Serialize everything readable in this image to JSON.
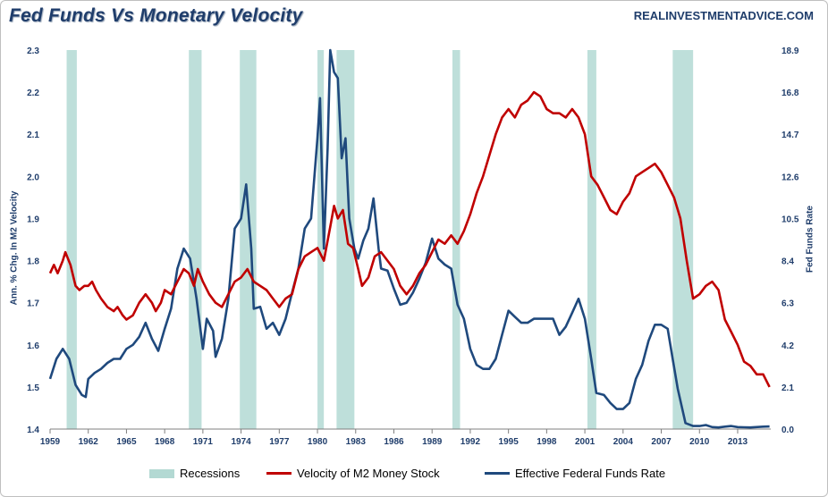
{
  "title": "Fed Funds Vs Monetary Velocity",
  "brand": "REALINVESTMENTADVICE.COM",
  "colors": {
    "velocity": "#c00000",
    "fedfunds": "#1f497d",
    "recession": "#b3d9d3",
    "axis_text": "#1f3d6b"
  },
  "legend": {
    "recessions": "Recessions",
    "velocity": "Velocity of M2 Money Stock",
    "fedfunds": "Effective Federal Funds Rate"
  },
  "chart_data": {
    "type": "line",
    "title": "Fed Funds Vs Monetary Velocity",
    "ylabel_left": "Ann. % Chg. In M2 Velocity",
    "ylabel_right": "Fed Funds Rate",
    "ylim_left": [
      1.4,
      2.3
    ],
    "ylim_right": [
      0.0,
      18.9
    ],
    "xlim": [
      1959,
      2015.6
    ],
    "x_ticks": [
      1959,
      1962,
      1965,
      1968,
      1971,
      1974,
      1977,
      1980,
      1983,
      1986,
      1989,
      1992,
      1995,
      1998,
      2001,
      2004,
      2007,
      2010,
      2013
    ],
    "y_ticks_left": [
      1.4,
      1.5,
      1.6,
      1.7,
      1.8,
      1.9,
      2.0,
      2.1,
      2.2,
      2.3
    ],
    "y_ticks_right": [
      "0.0",
      "2.1",
      "4.2",
      "6.3",
      "8.4",
      "10.5",
      "12.6",
      "14.7",
      "16.8",
      "18.9"
    ],
    "recessions": [
      [
        1960.3,
        1961.1
      ],
      [
        1969.9,
        1970.9
      ],
      [
        1973.9,
        1975.2
      ],
      [
        1980.0,
        1980.5
      ],
      [
        1981.5,
        1982.9
      ],
      [
        1990.6,
        1991.2
      ],
      [
        2001.2,
        2001.9
      ],
      [
        2007.9,
        2009.5
      ]
    ],
    "series": [
      {
        "name": "Velocity of M2 Money Stock",
        "axis": "left",
        "points": [
          [
            1959.0,
            1.77
          ],
          [
            1959.3,
            1.79
          ],
          [
            1959.6,
            1.77
          ],
          [
            1960.0,
            1.8
          ],
          [
            1960.2,
            1.82
          ],
          [
            1960.6,
            1.79
          ],
          [
            1961.0,
            1.74
          ],
          [
            1961.3,
            1.73
          ],
          [
            1961.7,
            1.74
          ],
          [
            1962.0,
            1.74
          ],
          [
            1962.3,
            1.75
          ],
          [
            1962.6,
            1.73
          ],
          [
            1963.0,
            1.71
          ],
          [
            1963.5,
            1.69
          ],
          [
            1964.0,
            1.68
          ],
          [
            1964.3,
            1.69
          ],
          [
            1964.7,
            1.67
          ],
          [
            1965.0,
            1.66
          ],
          [
            1965.5,
            1.67
          ],
          [
            1966.0,
            1.7
          ],
          [
            1966.5,
            1.72
          ],
          [
            1967.0,
            1.7
          ],
          [
            1967.3,
            1.68
          ],
          [
            1967.7,
            1.7
          ],
          [
            1968.0,
            1.73
          ],
          [
            1968.5,
            1.72
          ],
          [
            1969.0,
            1.75
          ],
          [
            1969.5,
            1.78
          ],
          [
            1969.9,
            1.77
          ],
          [
            1970.3,
            1.74
          ],
          [
            1970.6,
            1.78
          ],
          [
            1971.0,
            1.75
          ],
          [
            1971.5,
            1.72
          ],
          [
            1972.0,
            1.7
          ],
          [
            1972.5,
            1.69
          ],
          [
            1973.0,
            1.72
          ],
          [
            1973.5,
            1.75
          ],
          [
            1974.0,
            1.76
          ],
          [
            1974.5,
            1.78
          ],
          [
            1975.0,
            1.75
          ],
          [
            1975.5,
            1.74
          ],
          [
            1976.0,
            1.73
          ],
          [
            1976.5,
            1.71
          ],
          [
            1977.0,
            1.69
          ],
          [
            1977.5,
            1.71
          ],
          [
            1978.0,
            1.72
          ],
          [
            1978.5,
            1.78
          ],
          [
            1979.0,
            1.81
          ],
          [
            1979.5,
            1.82
          ],
          [
            1980.0,
            1.83
          ],
          [
            1980.5,
            1.8
          ],
          [
            1981.0,
            1.88
          ],
          [
            1981.3,
            1.93
          ],
          [
            1981.6,
            1.9
          ],
          [
            1982.0,
            1.92
          ],
          [
            1982.4,
            1.84
          ],
          [
            1982.8,
            1.83
          ],
          [
            1983.2,
            1.78
          ],
          [
            1983.5,
            1.74
          ],
          [
            1984.0,
            1.76
          ],
          [
            1984.5,
            1.81
          ],
          [
            1985.0,
            1.82
          ],
          [
            1985.5,
            1.8
          ],
          [
            1986.0,
            1.78
          ],
          [
            1986.5,
            1.74
          ],
          [
            1987.0,
            1.72
          ],
          [
            1987.5,
            1.74
          ],
          [
            1988.0,
            1.77
          ],
          [
            1988.5,
            1.79
          ],
          [
            1989.0,
            1.82
          ],
          [
            1989.5,
            1.85
          ],
          [
            1990.0,
            1.84
          ],
          [
            1990.5,
            1.86
          ],
          [
            1991.0,
            1.84
          ],
          [
            1991.5,
            1.87
          ],
          [
            1992.0,
            1.91
          ],
          [
            1992.5,
            1.96
          ],
          [
            1993.0,
            2.0
          ],
          [
            1993.5,
            2.05
          ],
          [
            1994.0,
            2.1
          ],
          [
            1994.5,
            2.14
          ],
          [
            1995.0,
            2.16
          ],
          [
            1995.5,
            2.14
          ],
          [
            1996.0,
            2.17
          ],
          [
            1996.5,
            2.18
          ],
          [
            1997.0,
            2.2
          ],
          [
            1997.5,
            2.19
          ],
          [
            1998.0,
            2.16
          ],
          [
            1998.5,
            2.15
          ],
          [
            1999.0,
            2.15
          ],
          [
            1999.5,
            2.14
          ],
          [
            2000.0,
            2.16
          ],
          [
            2000.5,
            2.14
          ],
          [
            2001.0,
            2.1
          ],
          [
            2001.5,
            2.0
          ],
          [
            2002.0,
            1.98
          ],
          [
            2002.5,
            1.95
          ],
          [
            2003.0,
            1.92
          ],
          [
            2003.5,
            1.91
          ],
          [
            2004.0,
            1.94
          ],
          [
            2004.5,
            1.96
          ],
          [
            2005.0,
            2.0
          ],
          [
            2005.5,
            2.01
          ],
          [
            2006.0,
            2.02
          ],
          [
            2006.5,
            2.03
          ],
          [
            2007.0,
            2.01
          ],
          [
            2007.5,
            1.98
          ],
          [
            2008.0,
            1.95
          ],
          [
            2008.5,
            1.9
          ],
          [
            2009.0,
            1.8
          ],
          [
            2009.5,
            1.71
          ],
          [
            2010.0,
            1.72
          ],
          [
            2010.5,
            1.74
          ],
          [
            2011.0,
            1.75
          ],
          [
            2011.5,
            1.73
          ],
          [
            2012.0,
            1.66
          ],
          [
            2012.5,
            1.63
          ],
          [
            2013.0,
            1.6
          ],
          [
            2013.5,
            1.56
          ],
          [
            2014.0,
            1.55
          ],
          [
            2014.5,
            1.53
          ],
          [
            2015.0,
            1.53
          ],
          [
            2015.5,
            1.5
          ]
        ]
      },
      {
        "name": "Effective Federal Funds Rate",
        "axis": "right",
        "points": [
          [
            1959.0,
            2.5
          ],
          [
            1959.5,
            3.5
          ],
          [
            1960.0,
            4.0
          ],
          [
            1960.5,
            3.5
          ],
          [
            1961.0,
            2.2
          ],
          [
            1961.5,
            1.7
          ],
          [
            1961.8,
            1.6
          ],
          [
            1962.0,
            2.5
          ],
          [
            1962.5,
            2.8
          ],
          [
            1963.0,
            3.0
          ],
          [
            1963.5,
            3.3
          ],
          [
            1964.0,
            3.5
          ],
          [
            1964.5,
            3.5
          ],
          [
            1965.0,
            4.0
          ],
          [
            1965.5,
            4.2
          ],
          [
            1966.0,
            4.6
          ],
          [
            1966.5,
            5.3
          ],
          [
            1967.0,
            4.5
          ],
          [
            1967.5,
            3.9
          ],
          [
            1968.0,
            5.0
          ],
          [
            1968.5,
            6.0
          ],
          [
            1969.0,
            8.0
          ],
          [
            1969.5,
            9.0
          ],
          [
            1970.0,
            8.5
          ],
          [
            1970.5,
            6.5
          ],
          [
            1971.0,
            4.0
          ],
          [
            1971.3,
            5.5
          ],
          [
            1971.8,
            4.9
          ],
          [
            1972.0,
            3.6
          ],
          [
            1972.5,
            4.5
          ],
          [
            1973.0,
            6.5
          ],
          [
            1973.5,
            10.0
          ],
          [
            1974.0,
            10.5
          ],
          [
            1974.4,
            12.2
          ],
          [
            1974.8,
            9.0
          ],
          [
            1975.0,
            6.0
          ],
          [
            1975.5,
            6.1
          ],
          [
            1976.0,
            5.0
          ],
          [
            1976.5,
            5.3
          ],
          [
            1977.0,
            4.7
          ],
          [
            1977.5,
            5.5
          ],
          [
            1978.0,
            6.8
          ],
          [
            1978.5,
            8.0
          ],
          [
            1979.0,
            10.0
          ],
          [
            1979.5,
            10.5
          ],
          [
            1980.0,
            14.5
          ],
          [
            1980.2,
            16.5
          ],
          [
            1980.5,
            9.0
          ],
          [
            1980.8,
            14.0
          ],
          [
            1981.0,
            19.0
          ],
          [
            1981.3,
            17.8
          ],
          [
            1981.6,
            17.5
          ],
          [
            1981.9,
            13.5
          ],
          [
            1982.2,
            14.5
          ],
          [
            1982.5,
            10.5
          ],
          [
            1982.9,
            9.0
          ],
          [
            1983.2,
            8.5
          ],
          [
            1983.6,
            9.4
          ],
          [
            1984.0,
            10.0
          ],
          [
            1984.4,
            11.5
          ],
          [
            1984.8,
            9.0
          ],
          [
            1985.0,
            8.0
          ],
          [
            1985.5,
            7.9
          ],
          [
            1986.0,
            7.0
          ],
          [
            1986.5,
            6.2
          ],
          [
            1987.0,
            6.3
          ],
          [
            1987.5,
            6.8
          ],
          [
            1988.0,
            7.5
          ],
          [
            1988.5,
            8.3
          ],
          [
            1989.0,
            9.5
          ],
          [
            1989.5,
            8.5
          ],
          [
            1990.0,
            8.2
          ],
          [
            1990.5,
            8.0
          ],
          [
            1991.0,
            6.2
          ],
          [
            1991.5,
            5.5
          ],
          [
            1992.0,
            4.0
          ],
          [
            1992.5,
            3.2
          ],
          [
            1993.0,
            3.0
          ],
          [
            1993.5,
            3.0
          ],
          [
            1994.0,
            3.5
          ],
          [
            1994.5,
            4.7
          ],
          [
            1995.0,
            5.9
          ],
          [
            1995.5,
            5.6
          ],
          [
            1996.0,
            5.3
          ],
          [
            1996.5,
            5.3
          ],
          [
            1997.0,
            5.5
          ],
          [
            1997.5,
            5.5
          ],
          [
            1998.0,
            5.5
          ],
          [
            1998.5,
            5.5
          ],
          [
            1999.0,
            4.7
          ],
          [
            1999.5,
            5.1
          ],
          [
            2000.0,
            5.8
          ],
          [
            2000.5,
            6.5
          ],
          [
            2001.0,
            5.5
          ],
          [
            2001.5,
            3.5
          ],
          [
            2001.9,
            1.8
          ],
          [
            2002.5,
            1.7
          ],
          [
            2003.0,
            1.3
          ],
          [
            2003.5,
            1.0
          ],
          [
            2004.0,
            1.0
          ],
          [
            2004.5,
            1.3
          ],
          [
            2005.0,
            2.5
          ],
          [
            2005.5,
            3.2
          ],
          [
            2006.0,
            4.4
          ],
          [
            2006.5,
            5.2
          ],
          [
            2007.0,
            5.2
          ],
          [
            2007.5,
            5.0
          ],
          [
            2007.9,
            3.5
          ],
          [
            2008.3,
            2.0
          ],
          [
            2008.9,
            0.3
          ],
          [
            2009.5,
            0.15
          ],
          [
            2010.0,
            0.15
          ],
          [
            2010.5,
            0.2
          ],
          [
            2011.0,
            0.1
          ],
          [
            2011.5,
            0.08
          ],
          [
            2012.0,
            0.12
          ],
          [
            2012.5,
            0.15
          ],
          [
            2013.0,
            0.1
          ],
          [
            2013.5,
            0.09
          ],
          [
            2014.0,
            0.08
          ],
          [
            2015.0,
            0.12
          ],
          [
            2015.5,
            0.13
          ]
        ]
      }
    ]
  }
}
